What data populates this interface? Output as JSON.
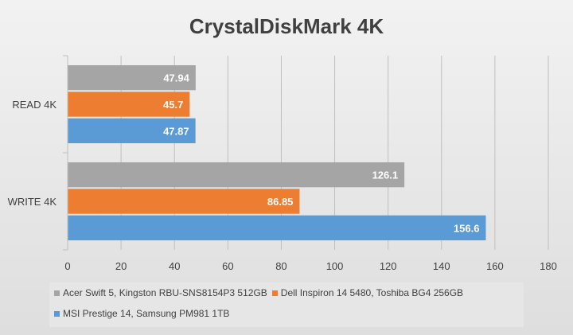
{
  "chart_data": {
    "type": "bar",
    "orientation": "horizontal",
    "title": "CrystalDiskMark 4K",
    "categories": [
      "READ 4K",
      "WRITE 4K"
    ],
    "series": [
      {
        "name": "Acer Swift 5, Kingston RBU-SNS8154P3 512GB",
        "color": "#a5a5a5",
        "values": [
          47.94,
          126.1
        ],
        "labels": [
          "47.94",
          "126.1"
        ]
      },
      {
        "name": "Dell Inspiron 14 5480, Toshiba BG4 256GB",
        "color": "#ed7d31",
        "values": [
          45.7,
          86.85
        ],
        "labels": [
          "45.7",
          "86.85"
        ]
      },
      {
        "name": "MSI Prestige 14, Samsung PM981 1TB",
        "color": "#5b9bd5",
        "values": [
          47.87,
          156.6
        ],
        "labels": [
          "47.87",
          "156.6"
        ]
      }
    ],
    "xlim": [
      0,
      180
    ],
    "ticks": [
      "0",
      "20",
      "40",
      "60",
      "80",
      "100",
      "120",
      "140",
      "160",
      "180"
    ],
    "grid": true,
    "legend_position": "bottom"
  }
}
